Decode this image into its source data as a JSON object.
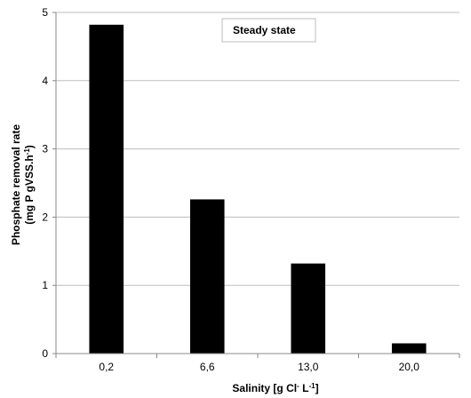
{
  "chart_data": {
    "type": "bar",
    "title": "Steady state",
    "categories": [
      "0,2",
      "6,6",
      "13,0",
      "20,0"
    ],
    "values": [
      4.82,
      2.26,
      1.32,
      0.15
    ],
    "xlabel": {
      "pre": "Salinity [g Cl",
      "sup1": "-",
      "mid": " L",
      "sup2": "-1",
      "post": "]"
    },
    "ylabel": {
      "line1": "Phosphate removal rate",
      "line2_pre": "(mg P gVSS.h",
      "line2_sup": "-1",
      "line2_post": ")"
    },
    "ylim": [
      0,
      5
    ],
    "yticks": [
      "0",
      "1",
      "2",
      "3",
      "4",
      "5"
    ],
    "grid": "horizontal",
    "bar_color": "#000000",
    "grid_color": "#bdbdbd"
  }
}
